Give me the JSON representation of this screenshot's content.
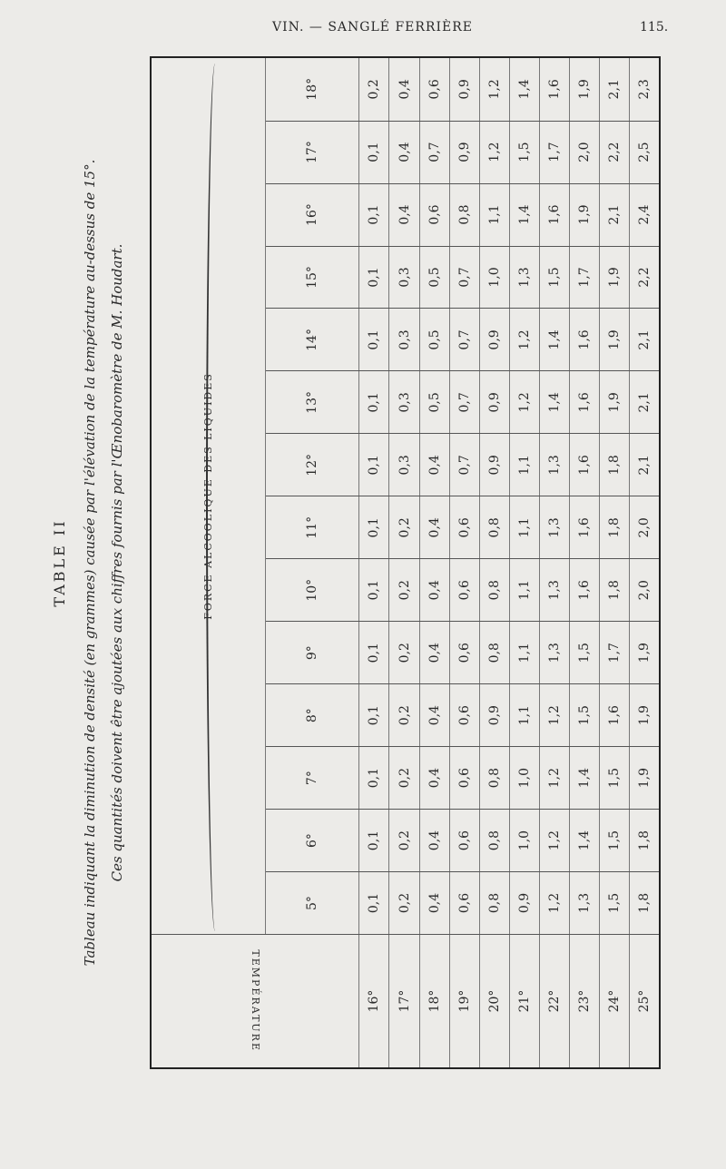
{
  "header": {
    "running_title": "VIN. — SANGLÉ FERRIÈRE",
    "page_number": "115."
  },
  "table_title": "TABLE II",
  "caption": [
    "Tableau indiquant la diminution de densité (en grammes) causée par l'élévation de la température au-dessus de 15°.",
    "Ces quantités doivent être ajoutées aux chiffres fournis par l'Œnobaromètre de M. Houdart."
  ],
  "table": {
    "column_group_header": "FORCE ALCOOLIQUE DES LIQUIDES",
    "row_group_header": "TEMPÉRATURE",
    "alcohol_strengths": [
      "5°",
      "6°",
      "7°",
      "8°",
      "9°",
      "10°",
      "11°",
      "12°",
      "13°",
      "14°",
      "15°",
      "16°",
      "17°",
      "18°"
    ],
    "rows": [
      {
        "temp": "16°",
        "values": [
          "0,1",
          "0,1",
          "0,1",
          "0,1",
          "0,1",
          "0,1",
          "0,1",
          "0,1",
          "0,1",
          "0,1",
          "0,1",
          "0,1",
          "0,1",
          "0,2"
        ]
      },
      {
        "temp": "17°",
        "values": [
          "0,2",
          "0,2",
          "0,2",
          "0,2",
          "0,2",
          "0,2",
          "0,2",
          "0,3",
          "0,3",
          "0,3",
          "0,3",
          "0,4",
          "0,4",
          "0,4"
        ]
      },
      {
        "temp": "18°",
        "values": [
          "0,4",
          "0,4",
          "0,4",
          "0,4",
          "0,4",
          "0,4",
          "0,4",
          "0,4",
          "0,5",
          "0,5",
          "0,5",
          "0,6",
          "0,7",
          "0,6"
        ]
      },
      {
        "temp": "19°",
        "values": [
          "0,6",
          "0,6",
          "0,6",
          "0,6",
          "0,6",
          "0,6",
          "0,6",
          "0,7",
          "0,7",
          "0,7",
          "0,7",
          "0,8",
          "0,9",
          "0,9"
        ]
      },
      {
        "temp": "20°",
        "values": [
          "0,8",
          "0,8",
          "0,8",
          "0,9",
          "0,8",
          "0,8",
          "0,8",
          "0,9",
          "0,9",
          "0,9",
          "1,0",
          "1,1",
          "1,2",
          "1,2"
        ]
      },
      {
        "temp": "21°",
        "values": [
          "0,9",
          "1,0",
          "1,0",
          "1,1",
          "1,1",
          "1,1",
          "1,1",
          "1,1",
          "1,2",
          "1,2",
          "1,3",
          "1,4",
          "1,5",
          "1,4"
        ]
      },
      {
        "temp": "22°",
        "values": [
          "1,2",
          "1,2",
          "1,2",
          "1,2",
          "1,3",
          "1,3",
          "1,3",
          "1,3",
          "1,4",
          "1,4",
          "1,5",
          "1,6",
          "1,7",
          "1,6"
        ]
      },
      {
        "temp": "23°",
        "values": [
          "1,3",
          "1,4",
          "1,4",
          "1,5",
          "1,5",
          "1,6",
          "1,6",
          "1,6",
          "1,6",
          "1,6",
          "1,7",
          "1,9",
          "2,0",
          "1,9"
        ]
      },
      {
        "temp": "24°",
        "values": [
          "1,5",
          "1,5",
          "1,5",
          "1,6",
          "1,7",
          "1,8",
          "1,8",
          "1,8",
          "1,9",
          "1,9",
          "1,9",
          "2,1",
          "2,2",
          "2,1"
        ]
      },
      {
        "temp": "25°",
        "values": [
          "1,8",
          "1,8",
          "1,9",
          "1,9",
          "1,9",
          "2,0",
          "2,0",
          "2,1",
          "2,1",
          "2,1",
          "2,2",
          "2,4",
          "2,5",
          "2,3"
        ]
      }
    ]
  }
}
